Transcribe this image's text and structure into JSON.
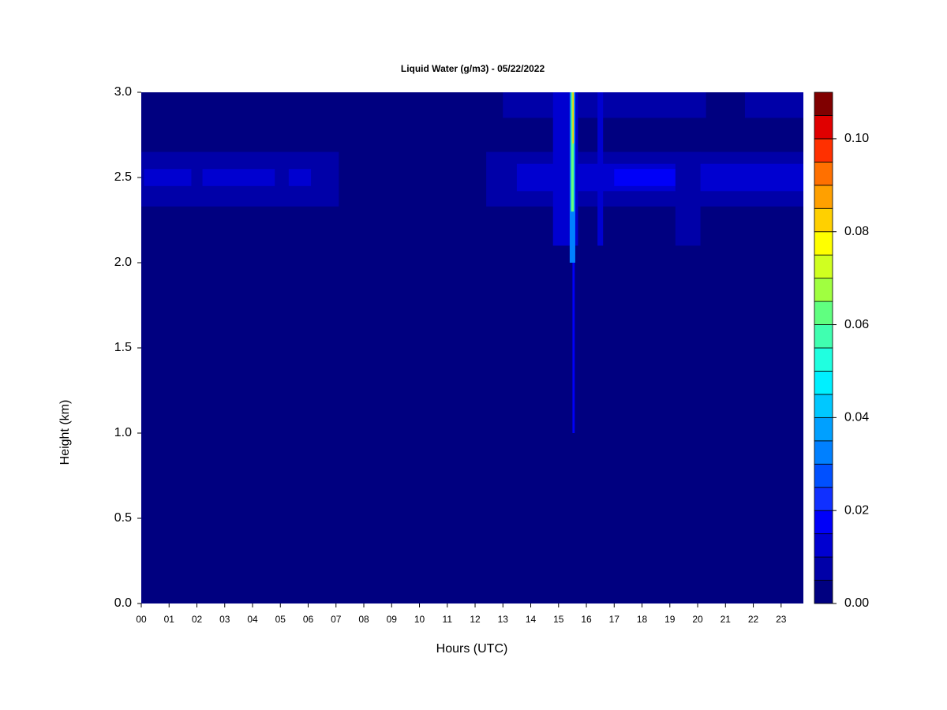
{
  "chart_data": {
    "type": "heatmap",
    "title": "Liquid Water (g/m3) - 05/22/2022",
    "x_label": "Hours (UTC)",
    "y_label": "Height (km)",
    "xlim": [
      0,
      23.8
    ],
    "ylim": [
      0,
      3
    ],
    "xticks": [
      {
        "value": 0,
        "label": "00"
      },
      {
        "value": 1,
        "label": "01"
      },
      {
        "value": 2,
        "label": "02"
      },
      {
        "value": 3,
        "label": "03"
      },
      {
        "value": 4,
        "label": "04"
      },
      {
        "value": 5,
        "label": "05"
      },
      {
        "value": 6,
        "label": "06"
      },
      {
        "value": 7,
        "label": "07"
      },
      {
        "value": 8,
        "label": "08"
      },
      {
        "value": 9,
        "label": "09"
      },
      {
        "value": 10,
        "label": "10"
      },
      {
        "value": 11,
        "label": "11"
      },
      {
        "value": 12,
        "label": "12"
      },
      {
        "value": 13,
        "label": "13"
      },
      {
        "value": 14,
        "label": "14"
      },
      {
        "value": 15,
        "label": "15"
      },
      {
        "value": 16,
        "label": "16"
      },
      {
        "value": 17,
        "label": "17"
      },
      {
        "value": 18,
        "label": "18"
      },
      {
        "value": 19,
        "label": "19"
      },
      {
        "value": 20,
        "label": "20"
      },
      {
        "value": 21,
        "label": "21"
      },
      {
        "value": 22,
        "label": "22"
      },
      {
        "value": 23,
        "label": "23"
      }
    ],
    "yticks": [
      {
        "value": 0,
        "label": "0.0"
      },
      {
        "value": 0.5,
        "label": "0.5"
      },
      {
        "value": 1,
        "label": "1.0"
      },
      {
        "value": 1.5,
        "label": "1.5"
      },
      {
        "value": 2,
        "label": "2.0"
      },
      {
        "value": 2.5,
        "label": "2.5"
      },
      {
        "value": 3,
        "label": "3.0"
      }
    ],
    "levels": [
      0,
      0.005,
      0.01,
      0.015,
      0.02,
      0.025,
      0.03,
      0.035,
      0.04,
      0.045,
      0.05,
      0.055,
      0.06,
      0.065,
      0.07,
      0.075,
      0.08,
      0.085,
      0.09,
      0.095,
      0.1,
      0.105,
      0.11
    ],
    "colors": [
      "#000080",
      "#0000a8",
      "#0000d0",
      "#0000f8",
      "#1030ff",
      "#0050ff",
      "#0080ff",
      "#00a0ff",
      "#00c8ff",
      "#00f0ff",
      "#20ffe0",
      "#40ffb0",
      "#60ff80",
      "#a0ff40",
      "#d0ff20",
      "#ffff00",
      "#ffd000",
      "#ffa000",
      "#ff7000",
      "#ff3000",
      "#e00000",
      "#800000"
    ],
    "colorbar_ticks": [
      {
        "value": 0,
        "label": "0.00"
      },
      {
        "value": 0.02,
        "label": "0.02"
      },
      {
        "value": 0.04,
        "label": "0.04"
      },
      {
        "value": 0.06,
        "label": "0.06"
      },
      {
        "value": 0.08,
        "label": "0.08"
      },
      {
        "value": 0.1,
        "label": "0.10"
      }
    ],
    "cells": [
      {
        "x0": 0,
        "x1": 23.8,
        "y0": 0,
        "y1": 3,
        "value": 0.002
      },
      {
        "x0": 0,
        "x1": 7.1,
        "y0": 2.33,
        "y1": 2.65,
        "value": 0.008
      },
      {
        "x0": 0.1,
        "x1": 1.8,
        "y0": 2.45,
        "y1": 2.55,
        "value": 0.012
      },
      {
        "x0": 2.2,
        "x1": 4.8,
        "y0": 2.45,
        "y1": 2.55,
        "value": 0.012
      },
      {
        "x0": 5.3,
        "x1": 6.1,
        "y0": 2.45,
        "y1": 2.55,
        "value": 0.012
      },
      {
        "x0": 12.4,
        "x1": 23.8,
        "y0": 2.33,
        "y1": 2.65,
        "value": 0.008
      },
      {
        "x0": 13.5,
        "x1": 23.8,
        "y0": 2.42,
        "y1": 2.58,
        "value": 0.012
      },
      {
        "x0": 17,
        "x1": 20,
        "y0": 2.45,
        "y1": 2.55,
        "value": 0.016
      },
      {
        "x0": 13,
        "x1": 20.3,
        "y0": 2.85,
        "y1": 3,
        "value": 0.008
      },
      {
        "x0": 21.7,
        "x1": 23.8,
        "y0": 2.85,
        "y1": 3,
        "value": 0.008
      },
      {
        "x0": 19.2,
        "x1": 20.1,
        "y0": 2.1,
        "y1": 2.65,
        "value": 0.008
      },
      {
        "x0": 14.8,
        "x1": 15.7,
        "y0": 2.1,
        "y1": 3,
        "value": 0.012
      },
      {
        "x0": 16.4,
        "x1": 16.6,
        "y0": 2.1,
        "y1": 3,
        "value": 0.012
      },
      {
        "x0": 15.5,
        "x1": 15.58,
        "y0": 1,
        "y1": 2,
        "value": 0.016
      },
      {
        "x0": 15.4,
        "x1": 15.6,
        "y0": 2,
        "y1": 3,
        "value": 0.03
      },
      {
        "x0": 15.45,
        "x1": 15.55,
        "y0": 2.3,
        "y1": 3,
        "value": 0.06
      },
      {
        "x0": 15.5,
        "x1": 15.55,
        "y0": 2.7,
        "y1": 3,
        "value": 0.08
      }
    ]
  }
}
